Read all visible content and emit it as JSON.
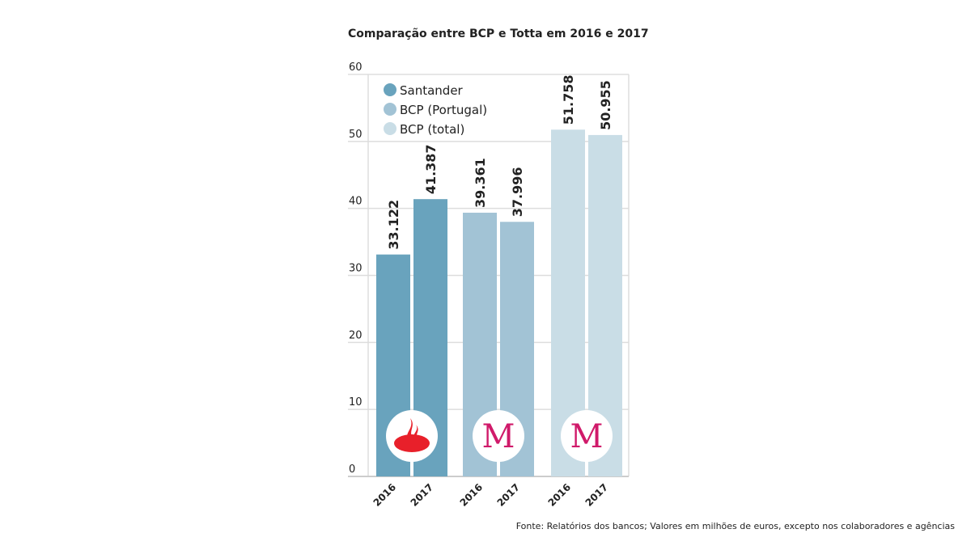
{
  "chart_data": {
    "type": "bar",
    "title": "Comparação entre BCP e Totta em 2016 e 2017",
    "xlabel": "",
    "ylabel": "",
    "ylim": [
      0,
      60
    ],
    "yticks": [
      0,
      10,
      20,
      30,
      40,
      50,
      60
    ],
    "grid": true,
    "legend_position": "top-left",
    "categories": [
      "2016",
      "2017"
    ],
    "series": [
      {
        "name": "Santander",
        "color": "#69a3bd",
        "values": [
          33.122,
          41.387
        ],
        "labels": [
          "33.122",
          "41.387"
        ],
        "logo": "santander-flame"
      },
      {
        "name": "BCP (Portugal)",
        "color": "#a2c3d5",
        "values": [
          39.361,
          37.996
        ],
        "labels": [
          "39.361",
          "37.996"
        ],
        "logo": "millennium-m"
      },
      {
        "name": "BCP (total)",
        "color": "#c9dde6",
        "values": [
          51.758,
          50.955
        ],
        "labels": [
          "51.758",
          "50.955"
        ],
        "logo": "millennium-m"
      }
    ],
    "source": "Fonte: Relatórios dos bancos; Valores em milhões de euros, excepto nos colaboradores e agências"
  }
}
